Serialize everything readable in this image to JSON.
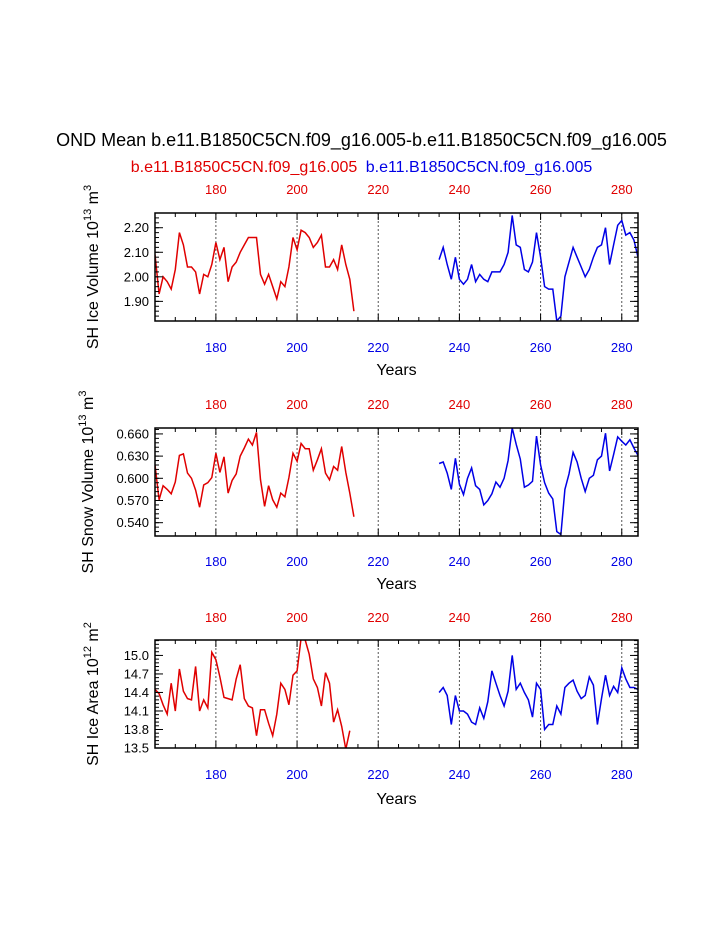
{
  "title": "OND Mean b.e11.B1850C5CN.f09_g16.005-b.e11.B1850C5CN.f09_g16.005",
  "legend": {
    "red": "b.e11.B1850C5CN.f09_g16.005",
    "blue": "b.e11.B1850C5CN.f09_g16.005"
  },
  "colors": {
    "red": "#e00000",
    "blue": "#0000e6",
    "grid": "#555555",
    "axis": "#000000"
  },
  "chart_data": [
    {
      "type": "line",
      "id": "ice-volume",
      "ylabel": "SH Ice Volume 10^13 m^3",
      "ylabel_main": "SH Ice Volume 10",
      "ylabel_exp": "13",
      "ylabel_unit": "m",
      "ylabel_unit_exp": "3",
      "xlabel": "Years",
      "xlim": [
        165,
        284
      ],
      "ylim": [
        1.82,
        2.26
      ],
      "yticks": [
        "2.20",
        "2.10",
        "2.00",
        "1.90"
      ],
      "xticks": [
        "180",
        "200",
        "220",
        "240",
        "260",
        "280"
      ],
      "series": [
        {
          "name": "red",
          "x_start": 165,
          "values": [
            2.09,
            1.93,
            2.0,
            1.98,
            1.95,
            2.03,
            2.18,
            2.13,
            2.04,
            2.04,
            2.02,
            1.93,
            2.01,
            2.0,
            2.05,
            2.14,
            2.07,
            2.12,
            1.98,
            2.04,
            2.06,
            2.1,
            2.13,
            2.16,
            2.16,
            2.16,
            2.01,
            1.97,
            2.01,
            1.96,
            1.91,
            1.98,
            1.96,
            2.04,
            2.16,
            2.11,
            2.19,
            2.18,
            2.16,
            2.12,
            2.14,
            2.17,
            2.04,
            2.04,
            2.07,
            2.03,
            2.13,
            2.05,
            1.99,
            1.86
          ]
        },
        {
          "name": "blue",
          "x_start": 235,
          "values": [
            2.07,
            2.12,
            2.05,
            1.99,
            2.08,
            1.99,
            1.97,
            1.99,
            2.05,
            1.98,
            2.01,
            1.99,
            1.98,
            2.02,
            2.02,
            2.02,
            2.05,
            2.1,
            2.25,
            2.13,
            2.12,
            2.03,
            2.02,
            2.06,
            2.18,
            2.08,
            1.96,
            1.95,
            1.95,
            1.82,
            1.84,
            2.0,
            2.06,
            2.12,
            2.08,
            2.04,
            2.0,
            2.03,
            2.08,
            2.12,
            2.13,
            2.2,
            2.05,
            2.13,
            2.21,
            2.23,
            2.17,
            2.18,
            2.15,
            2.08
          ]
        }
      ]
    },
    {
      "type": "line",
      "id": "snow-volume",
      "ylabel": "SH Snow Volume 10^13 m^3",
      "ylabel_main": "SH Snow Volume 10",
      "ylabel_exp": "13",
      "ylabel_unit": "m",
      "ylabel_unit_exp": "3",
      "xlabel": "Years",
      "xlim": [
        165,
        284
      ],
      "ylim": [
        0.522,
        0.668
      ],
      "yticks": [
        "0.660",
        "0.630",
        "0.600",
        "0.570",
        "0.540"
      ],
      "xticks": [
        "180",
        "200",
        "220",
        "240",
        "260",
        "280"
      ],
      "series": [
        {
          "name": "red",
          "x_start": 165,
          "values": [
            0.618,
            0.571,
            0.59,
            0.585,
            0.579,
            0.595,
            0.631,
            0.633,
            0.607,
            0.6,
            0.584,
            0.561,
            0.591,
            0.594,
            0.601,
            0.634,
            0.608,
            0.629,
            0.58,
            0.597,
            0.606,
            0.63,
            0.641,
            0.653,
            0.645,
            0.662,
            0.598,
            0.562,
            0.59,
            0.571,
            0.561,
            0.58,
            0.575,
            0.601,
            0.634,
            0.623,
            0.647,
            0.64,
            0.64,
            0.611,
            0.625,
            0.64,
            0.607,
            0.598,
            0.616,
            0.611,
            0.643,
            0.608,
            0.58,
            0.548
          ]
        },
        {
          "name": "blue",
          "x_start": 235,
          "values": [
            0.62,
            0.622,
            0.607,
            0.585,
            0.627,
            0.592,
            0.578,
            0.6,
            0.614,
            0.59,
            0.585,
            0.564,
            0.57,
            0.579,
            0.595,
            0.588,
            0.6,
            0.624,
            0.668,
            0.646,
            0.626,
            0.588,
            0.591,
            0.596,
            0.657,
            0.618,
            0.594,
            0.58,
            0.572,
            0.528,
            0.524,
            0.585,
            0.606,
            0.635,
            0.622,
            0.6,
            0.582,
            0.6,
            0.604,
            0.625,
            0.63,
            0.661,
            0.61,
            0.632,
            0.656,
            0.65,
            0.645,
            0.652,
            0.641,
            0.631
          ]
        }
      ]
    },
    {
      "type": "line",
      "id": "ice-area",
      "ylabel": "SH Ice Area 10^12 m^2",
      "ylabel_main": "SH Ice Area 10",
      "ylabel_exp": "12",
      "ylabel_unit": "m",
      "ylabel_unit_exp": "2",
      "xlabel": "Years",
      "xlim": [
        165,
        284
      ],
      "ylim": [
        13.5,
        15.25
      ],
      "yticks": [
        "15.0",
        "14.7",
        "14.4",
        "14.1",
        "13.8",
        "13.5"
      ],
      "xticks": [
        "180",
        "200",
        "220",
        "240",
        "260",
        "280"
      ],
      "series": [
        {
          "name": "red",
          "x_start": 165,
          "values": [
            14.45,
            14.38,
            14.2,
            14.05,
            14.55,
            14.1,
            14.78,
            14.42,
            14.3,
            14.28,
            14.82,
            14.1,
            14.28,
            14.15,
            15.05,
            14.93,
            14.65,
            14.32,
            14.3,
            14.28,
            14.62,
            14.85,
            14.3,
            14.18,
            14.15,
            13.7,
            14.12,
            14.12,
            13.9,
            13.7,
            14.05,
            14.55,
            14.45,
            14.2,
            14.68,
            14.75,
            15.28,
            15.25,
            15.02,
            14.62,
            14.48,
            14.18,
            14.72,
            14.55,
            13.92,
            14.12,
            13.85,
            13.48,
            13.78
          ]
        },
        {
          "name": "blue",
          "x_start": 235,
          "values": [
            14.4,
            14.48,
            14.35,
            13.88,
            14.35,
            14.1,
            14.1,
            14.05,
            13.92,
            13.88,
            14.15,
            13.98,
            14.25,
            14.75,
            14.55,
            14.35,
            14.18,
            14.42,
            15.0,
            14.45,
            14.55,
            14.4,
            14.28,
            14.0,
            14.55,
            14.45,
            13.8,
            13.88,
            13.88,
            14.18,
            14.05,
            14.48,
            14.55,
            14.6,
            14.42,
            14.3,
            14.35,
            14.65,
            14.52,
            13.88,
            14.3,
            14.68,
            14.35,
            14.5,
            14.4,
            14.8,
            14.62,
            14.48,
            14.48,
            14.45
          ]
        }
      ]
    }
  ]
}
